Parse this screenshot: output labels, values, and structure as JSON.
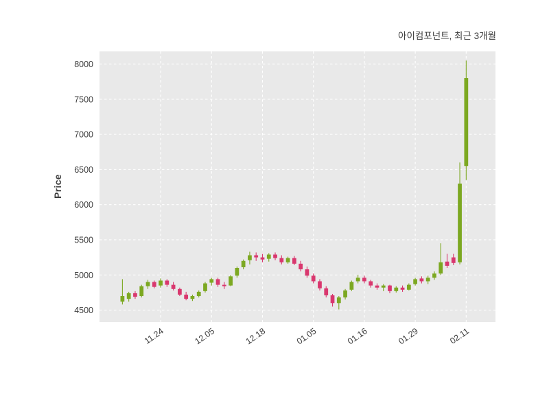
{
  "chart_data": {
    "type": "candlestick",
    "title": "아이컴포넌트, 최근 3개월",
    "ylabel": "Price",
    "xlabel": "",
    "grid": true,
    "legend": "none",
    "y_ticks": [
      4500,
      5000,
      5500,
      6000,
      6500,
      7000,
      7500,
      8000
    ],
    "ylim": [
      4330,
      8180
    ],
    "xlim": [
      -3.6,
      58.6
    ],
    "x_tick_labels": [
      "11.24",
      "12.05",
      "12.18",
      "01.05",
      "01.16",
      "01.29",
      "02.11"
    ],
    "x_tick_indices": [
      6,
      14,
      22,
      30,
      38,
      46,
      54
    ],
    "colors": {
      "up": "#7ca821",
      "down": "#d9376e",
      "plot_bg": "#e9e9e9",
      "grid": "#ffffff",
      "text": "#3d3d3d"
    },
    "ohlc_format": [
      "open",
      "high",
      "low",
      "close"
    ],
    "candles": [
      [
        4620,
        4940,
        4580,
        4700
      ],
      [
        4660,
        4760,
        4620,
        4740
      ],
      [
        4740,
        4770,
        4660,
        4690
      ],
      [
        4700,
        4860,
        4680,
        4840
      ],
      [
        4840,
        4930,
        4800,
        4900
      ],
      [
        4900,
        4920,
        4810,
        4830
      ],
      [
        4850,
        4950,
        4820,
        4920
      ],
      [
        4920,
        4940,
        4830,
        4860
      ],
      [
        4860,
        4900,
        4780,
        4800
      ],
      [
        4800,
        4820,
        4700,
        4720
      ],
      [
        4720,
        4760,
        4640,
        4660
      ],
      [
        4660,
        4720,
        4630,
        4700
      ],
      [
        4700,
        4780,
        4680,
        4760
      ],
      [
        4770,
        4900,
        4750,
        4880
      ],
      [
        4890,
        4960,
        4850,
        4940
      ],
      [
        4940,
        4960,
        4830,
        4860
      ],
      [
        4860,
        4900,
        4800,
        4840
      ],
      [
        4850,
        5000,
        4840,
        4980
      ],
      [
        4990,
        5120,
        4960,
        5100
      ],
      [
        5110,
        5220,
        5080,
        5200
      ],
      [
        5210,
        5330,
        5150,
        5280
      ],
      [
        5280,
        5320,
        5200,
        5250
      ],
      [
        5250,
        5300,
        5180,
        5220
      ],
      [
        5230,
        5310,
        5190,
        5290
      ],
      [
        5290,
        5320,
        5210,
        5240
      ],
      [
        5240,
        5280,
        5150,
        5180
      ],
      [
        5180,
        5260,
        5160,
        5240
      ],
      [
        5240,
        5270,
        5140,
        5160
      ],
      [
        5160,
        5200,
        5050,
        5080
      ],
      [
        5080,
        5120,
        4960,
        4990
      ],
      [
        4990,
        5020,
        4880,
        4910
      ],
      [
        4910,
        4940,
        4780,
        4810
      ],
      [
        4810,
        4840,
        4680,
        4710
      ],
      [
        4710,
        4730,
        4550,
        4600
      ],
      [
        4600,
        4700,
        4510,
        4680
      ],
      [
        4680,
        4800,
        4650,
        4780
      ],
      [
        4790,
        4920,
        4770,
        4900
      ],
      [
        4910,
        5000,
        4880,
        4960
      ],
      [
        4960,
        4990,
        4880,
        4910
      ],
      [
        4910,
        4930,
        4820,
        4850
      ],
      [
        4850,
        4880,
        4790,
        4820
      ],
      [
        4820,
        4870,
        4770,
        4850
      ],
      [
        4850,
        4860,
        4740,
        4770
      ],
      [
        4770,
        4840,
        4750,
        4820
      ],
      [
        4820,
        4850,
        4760,
        4790
      ],
      [
        4790,
        4880,
        4780,
        4860
      ],
      [
        4870,
        4960,
        4850,
        4940
      ],
      [
        4950,
        4980,
        4880,
        4910
      ],
      [
        4910,
        4990,
        4870,
        4960
      ],
      [
        4960,
        5050,
        4930,
        5020
      ],
      [
        5020,
        5450,
        5000,
        5180
      ],
      [
        5190,
        5300,
        5100,
        5130
      ],
      [
        5250,
        5300,
        5140,
        5170
      ],
      [
        5180,
        6600,
        5150,
        6300
      ],
      [
        6550,
        8050,
        6350,
        7800
      ]
    ]
  }
}
